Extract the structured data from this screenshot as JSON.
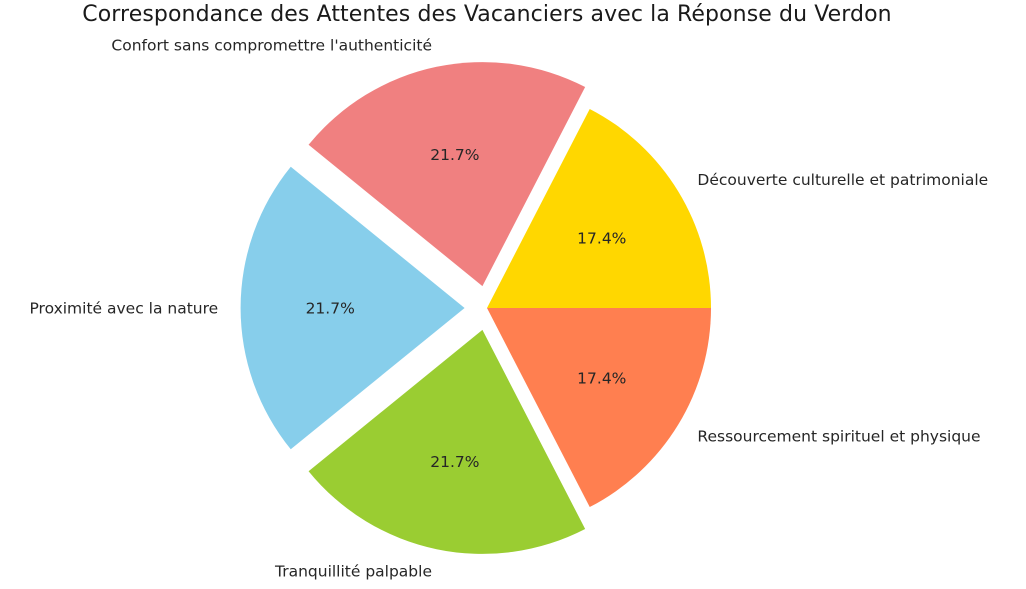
{
  "chart_data": {
    "type": "pie",
    "title": "Correspondance des Attentes des Vacanciers avec la Réponse du Verdon",
    "legend_position": "none",
    "background_color": "#ffffff",
    "text_color": "#262626",
    "direction": "clockwise",
    "slices": [
      {
        "label": "Confort sans compromettre l'authenticité",
        "pct": 21.7,
        "pct_label": "21.7%",
        "color": "#F08080",
        "explode": 0.1
      },
      {
        "label": "Découverte culturelle et patrimoniale",
        "pct": 17.4,
        "pct_label": "17.4%",
        "color": "#FFD700",
        "explode": 0
      },
      {
        "label": "Ressourcement spirituel et physique",
        "pct": 17.4,
        "pct_label": "17.4%",
        "color": "#FF7F50",
        "explode": 0
      },
      {
        "label": "Tranquillité palpable",
        "pct": 21.7,
        "pct_label": "21.7%",
        "color": "#9ACD32",
        "explode": 0.1
      },
      {
        "label": "Proximité avec la nature",
        "pct": 21.7,
        "pct_label": "21.7%",
        "color": "#87CEEB",
        "explode": 0.1
      }
    ]
  }
}
